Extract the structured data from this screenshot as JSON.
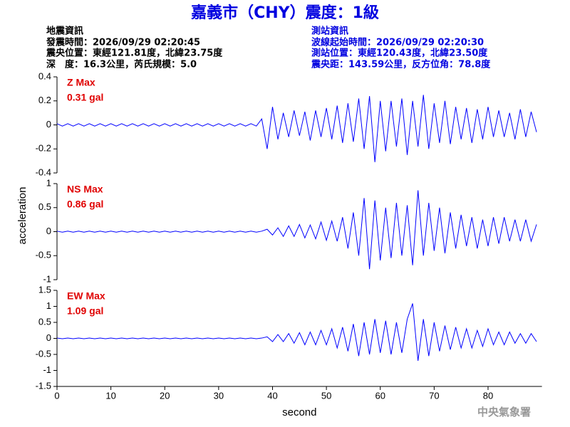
{
  "header": {
    "title": "嘉義市（CHY）震度：1級",
    "left": [
      "地震資訊",
      "發震時間：2026/09/29 02:20:45",
      "震央位置：東經121.81度，北緯23.75度",
      "深　度：16.3公里，芮氏規模：5.0"
    ],
    "right": [
      "測站資訊",
      "波線起始時間：2026/09/29 02:20:30",
      "測站位置：東經120.43度，北緯23.50度",
      "震央距：143.59公里，反方位角：78.8度"
    ]
  },
  "chart_data": [
    {
      "type": "line",
      "annotations": [
        "Z Max",
        "0.31 gal"
      ],
      "x": [
        0,
        1,
        2,
        3,
        4,
        5,
        6,
        7,
        8,
        9,
        10,
        11,
        12,
        13,
        14,
        15,
        16,
        17,
        18,
        19,
        20,
        21,
        22,
        23,
        24,
        25,
        26,
        27,
        28,
        29,
        30,
        31,
        32,
        33,
        34,
        35,
        36,
        37,
        38,
        39,
        40,
        41,
        42,
        43,
        44,
        45,
        46,
        47,
        48,
        49,
        50,
        51,
        52,
        53,
        54,
        55,
        56,
        57,
        58,
        59,
        60,
        61,
        62,
        63,
        64,
        65,
        66,
        67,
        68,
        69,
        70,
        71,
        72,
        73,
        74,
        75,
        76,
        77,
        78,
        79,
        80,
        81,
        82,
        83,
        84,
        85,
        86,
        87,
        88,
        89
      ],
      "series": [
        {
          "color": "#0000ff",
          "values": [
            0.01,
            -0.01,
            0.01,
            -0.01,
            0.01,
            -0.01,
            0.01,
            -0.01,
            0.01,
            -0.01,
            0.01,
            -0.01,
            0.01,
            -0.01,
            0.01,
            -0.01,
            0.01,
            -0.01,
            0.01,
            -0.01,
            0.01,
            -0.01,
            0.01,
            -0.01,
            0.01,
            -0.01,
            0.01,
            -0.01,
            0.01,
            -0.01,
            0.01,
            -0.01,
            0.01,
            -0.01,
            0.01,
            -0.01,
            0.01,
            -0.01,
            0.05,
            -0.2,
            0.15,
            -0.12,
            0.1,
            -0.1,
            0.12,
            -0.09,
            0.11,
            -0.13,
            0.12,
            -0.1,
            0.14,
            -0.12,
            0.16,
            -0.15,
            0.18,
            -0.14,
            0.22,
            -0.2,
            0.24,
            -0.31,
            0.2,
            -0.22,
            0.2,
            -0.18,
            0.22,
            -0.25,
            0.2,
            -0.18,
            0.25,
            -0.2,
            0.18,
            -0.15,
            0.2,
            -0.16,
            0.15,
            -0.12,
            0.14,
            -0.15,
            0.13,
            -0.12,
            0.15,
            -0.1,
            0.12,
            -0.1,
            0.1,
            -0.12,
            0.13,
            -0.1,
            0.11,
            -0.06
          ]
        }
      ],
      "xlim": [
        0,
        90
      ],
      "ylim": [
        -0.4,
        0.4
      ],
      "yticks": [
        -0.4,
        -0.2,
        0,
        0.2,
        0.4
      ]
    },
    {
      "type": "line",
      "annotations": [
        "NS Max",
        "0.86 gal"
      ],
      "ylabel": "acceleration",
      "x": [
        0,
        1,
        2,
        3,
        4,
        5,
        6,
        7,
        8,
        9,
        10,
        11,
        12,
        13,
        14,
        15,
        16,
        17,
        18,
        19,
        20,
        21,
        22,
        23,
        24,
        25,
        26,
        27,
        28,
        29,
        30,
        31,
        32,
        33,
        34,
        35,
        36,
        37,
        38,
        39,
        40,
        41,
        42,
        43,
        44,
        45,
        46,
        47,
        48,
        49,
        50,
        51,
        52,
        53,
        54,
        55,
        56,
        57,
        58,
        59,
        60,
        61,
        62,
        63,
        64,
        65,
        66,
        67,
        68,
        69,
        70,
        71,
        72,
        73,
        74,
        75,
        76,
        77,
        78,
        79,
        80,
        81,
        82,
        83,
        84,
        85,
        86,
        87,
        88,
        89
      ],
      "series": [
        {
          "color": "#0000ff",
          "values": [
            0.01,
            -0.01,
            0.01,
            -0.01,
            0.01,
            -0.01,
            0.01,
            -0.01,
            0.01,
            -0.01,
            0.01,
            -0.01,
            0.01,
            -0.01,
            0.01,
            -0.01,
            0.01,
            -0.01,
            0.01,
            -0.01,
            0.01,
            -0.01,
            0.01,
            -0.01,
            0.01,
            -0.01,
            0.01,
            -0.01,
            0.01,
            -0.01,
            0.01,
            -0.01,
            0.01,
            -0.01,
            0.01,
            -0.01,
            0.01,
            -0.01,
            0.01,
            0.05,
            -0.07,
            0.08,
            -0.1,
            0.12,
            -0.1,
            0.15,
            -0.13,
            0.14,
            -0.15,
            0.2,
            -0.18,
            0.22,
            -0.2,
            0.3,
            -0.35,
            0.4,
            -0.5,
            0.7,
            -0.78,
            0.65,
            -0.6,
            0.5,
            -0.55,
            0.6,
            -0.5,
            0.55,
            -0.7,
            0.86,
            -0.5,
            0.6,
            -0.4,
            0.5,
            -0.45,
            0.4,
            -0.35,
            0.35,
            -0.3,
            0.3,
            -0.35,
            0.25,
            -0.3,
            0.3,
            -0.25,
            0.3,
            -0.2,
            0.25,
            -0.2,
            0.25,
            -0.2,
            0.15
          ]
        }
      ],
      "xlim": [
        0,
        90
      ],
      "ylim": [
        -1,
        1
      ],
      "yticks": [
        -1,
        -0.5,
        0,
        0.5,
        1
      ]
    },
    {
      "type": "line",
      "annotations": [
        "EW Max",
        "1.09 gal"
      ],
      "xlabel": "second",
      "x": [
        0,
        1,
        2,
        3,
        4,
        5,
        6,
        7,
        8,
        9,
        10,
        11,
        12,
        13,
        14,
        15,
        16,
        17,
        18,
        19,
        20,
        21,
        22,
        23,
        24,
        25,
        26,
        27,
        28,
        29,
        30,
        31,
        32,
        33,
        34,
        35,
        36,
        37,
        38,
        39,
        40,
        41,
        42,
        43,
        44,
        45,
        46,
        47,
        48,
        49,
        50,
        51,
        52,
        53,
        54,
        55,
        56,
        57,
        58,
        59,
        60,
        61,
        62,
        63,
        64,
        65,
        66,
        67,
        68,
        69,
        70,
        71,
        72,
        73,
        74,
        75,
        76,
        77,
        78,
        79,
        80,
        81,
        82,
        83,
        84,
        85,
        86,
        87,
        88,
        89
      ],
      "series": [
        {
          "color": "#0000ff",
          "values": [
            0.01,
            -0.01,
            0.01,
            -0.01,
            0.01,
            -0.01,
            0.01,
            -0.01,
            0.01,
            -0.01,
            0.01,
            -0.01,
            0.01,
            -0.01,
            0.01,
            -0.01,
            0.01,
            -0.01,
            0.01,
            -0.01,
            0.01,
            -0.01,
            0.01,
            -0.01,
            0.01,
            -0.01,
            0.01,
            -0.01,
            0.01,
            -0.01,
            0.01,
            -0.01,
            0.01,
            -0.01,
            0.01,
            -0.01,
            0.01,
            -0.01,
            0.01,
            0.05,
            -0.1,
            0.12,
            -0.1,
            0.15,
            -0.15,
            0.18,
            -0.2,
            0.2,
            -0.2,
            0.25,
            -0.2,
            0.3,
            -0.3,
            0.35,
            -0.4,
            0.45,
            -0.55,
            0.5,
            -0.5,
            0.6,
            -0.45,
            0.55,
            -0.5,
            0.5,
            -0.45,
            0.6,
            1.09,
            -0.7,
            0.6,
            -0.55,
            0.5,
            -0.4,
            0.4,
            -0.35,
            0.35,
            -0.3,
            0.3,
            -0.3,
            0.25,
            -0.25,
            0.3,
            -0.2,
            0.2,
            -0.2,
            0.2,
            -0.15,
            0.15,
            -0.15,
            0.15,
            -0.1
          ]
        }
      ],
      "xlim": [
        0,
        90
      ],
      "ylim": [
        -1.5,
        1.5
      ],
      "yticks": [
        -1.5,
        -1,
        -0.5,
        0,
        0.5,
        1,
        1.5
      ],
      "xticks": [
        0,
        10,
        20,
        30,
        40,
        50,
        60,
        70,
        80
      ]
    }
  ],
  "footer": "中央氣象署"
}
